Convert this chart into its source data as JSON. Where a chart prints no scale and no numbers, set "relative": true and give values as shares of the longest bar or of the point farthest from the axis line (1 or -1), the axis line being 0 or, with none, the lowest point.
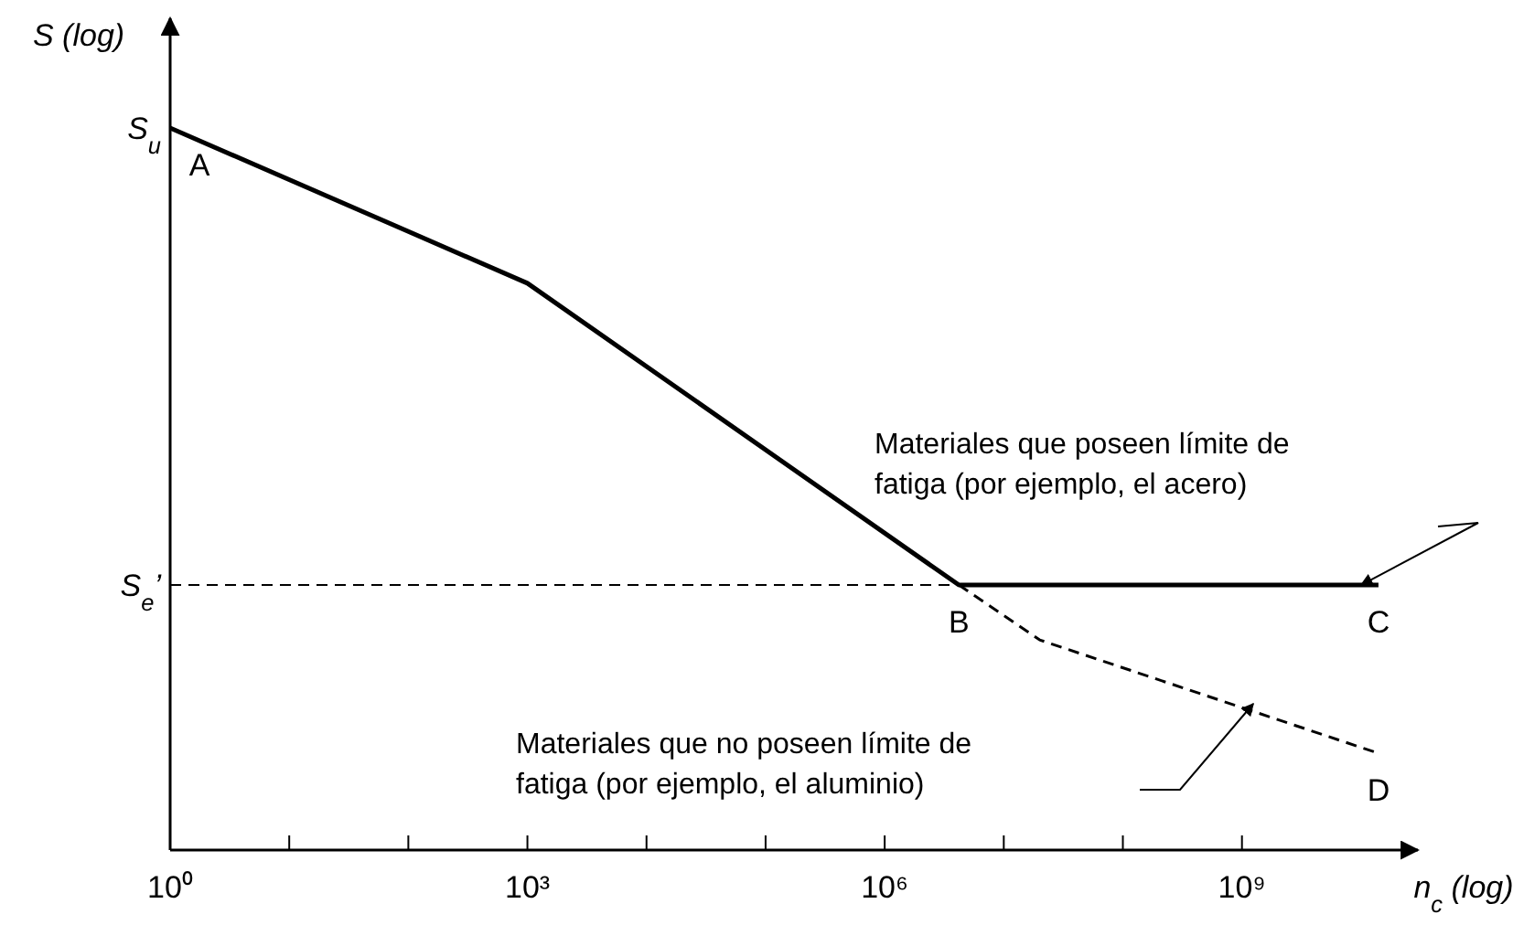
{
  "chart_data": {
    "type": "line",
    "relative": true,
    "log": "x",
    "xlabel": "n$_{c}$ (log)",
    "ylabel": "S (log)",
    "xlim": [
      1,
      30000000000
    ],
    "xticks": [
      {
        "value": 1,
        "label": "10⁰"
      },
      {
        "value": 10,
        "label": null
      },
      {
        "value": 100,
        "label": null
      },
      {
        "value": 1000,
        "label": "10³"
      },
      {
        "value": 10000,
        "label": null
      },
      {
        "value": 100000,
        "label": null
      },
      {
        "value": 1000000,
        "label": "10⁶"
      },
      {
        "value": 10000000,
        "label": null
      },
      {
        "value": 100000000,
        "label": null
      },
      {
        "value": 1000000000,
        "label": "10⁹"
      }
    ],
    "series": [
      {
        "color": "#000000",
        "line_style": "solid",
        "x": [
          1,
          1000,
          4200000,
          14000000000
        ],
        "values": [
          1,
          0.785,
          0.367,
          0.367
        ]
      },
      {
        "color": "#000000",
        "line_style": "dashed",
        "x": [
          4200000,
          20000000,
          14000000000
        ],
        "values": [
          0.367,
          0.291,
          0.134
        ]
      }
    ],
    "ref_lines": [
      {
        "axis": "y",
        "value": 0.367,
        "label": "S$_{e}$’",
        "line_style": "dashed",
        "color": "#000000"
      }
    ],
    "annotations": [
      {
        "text": "S$_{u}$",
        "x": 1,
        "y": 1
      },
      {
        "text": "A",
        "x": 1,
        "y": 1
      },
      {
        "text": "B",
        "x": 4200000,
        "y": 0.367
      },
      {
        "text": "C",
        "x": 14000000000,
        "y": 0.367
      },
      {
        "text": "D",
        "x": 14000000000,
        "y": 0.134
      },
      "Materiales que poseen límite de fatiga (por ejemplo, el acero)",
      "Materiales que no poseen límite de fatiga (por ejemplo, el aluminio)"
    ]
  }
}
